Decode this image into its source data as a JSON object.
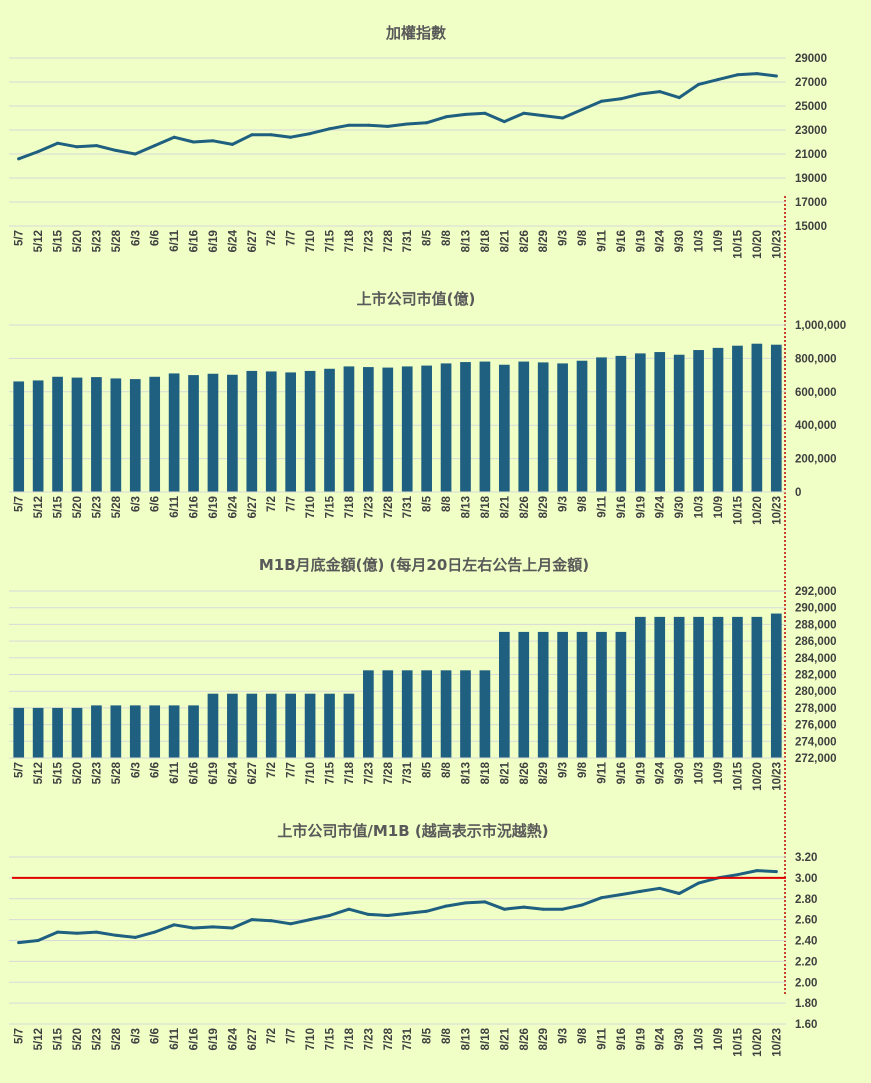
{
  "palette": {
    "background": "#efffc6",
    "series": "#1f5f7f",
    "grid": "#d9d9d9",
    "reference_line": "#e00000",
    "separator": "#c00000"
  },
  "x_labels": [
    "5/7",
    "5/12",
    "5/15",
    "5/20",
    "5/23",
    "5/28",
    "6/3",
    "6/6",
    "6/11",
    "6/16",
    "6/19",
    "6/24",
    "6/27",
    "7/2",
    "7/7",
    "7/10",
    "7/15",
    "7/18",
    "7/23",
    "7/28",
    "7/31",
    "8/5",
    "8/8",
    "8/13",
    "8/18",
    "8/21",
    "8/26",
    "8/29",
    "9/3",
    "9/8",
    "9/11",
    "9/16",
    "9/19",
    "9/24",
    "9/30",
    "10/3",
    "10/9",
    "10/15",
    "10/20",
    "10/23"
  ],
  "chart_data": [
    {
      "type": "line",
      "title": "加權指數",
      "ylim": [
        15000,
        29000
      ],
      "yticks": [
        "15000",
        "17000",
        "19000",
        "21000",
        "23000",
        "25000",
        "27000",
        "29000"
      ],
      "categories": [
        "5/7",
        "5/12",
        "5/15",
        "5/20",
        "5/23",
        "5/28",
        "6/3",
        "6/6",
        "6/11",
        "6/16",
        "6/19",
        "6/24",
        "6/27",
        "7/2",
        "7/7",
        "7/10",
        "7/15",
        "7/18",
        "7/23",
        "7/28",
        "7/31",
        "8/5",
        "8/8",
        "8/13",
        "8/18",
        "8/21",
        "8/26",
        "8/29",
        "9/3",
        "9/8",
        "9/11",
        "9/16",
        "9/19",
        "9/24",
        "9/30",
        "10/3",
        "10/9",
        "10/15",
        "10/20",
        "10/23"
      ],
      "values": [
        20600,
        21200,
        21900,
        21600,
        21700,
        21300,
        21000,
        21700,
        22400,
        22000,
        22100,
        21800,
        22600,
        22600,
        22400,
        22700,
        23100,
        23400,
        23400,
        23300,
        23500,
        23600,
        24100,
        24300,
        24400,
        23700,
        24400,
        24200,
        24000,
        24700,
        25400,
        25600,
        26000,
        26200,
        25700,
        26800,
        27200,
        27600,
        27700,
        27500
      ]
    },
    {
      "type": "bar",
      "title": "上市公司市值(億)",
      "ylim": [
        0,
        1000000
      ],
      "yticks": [
        "0",
        "200,000",
        "400,000",
        "600,000",
        "800,000",
        "1,000,000"
      ],
      "categories": [
        "5/7",
        "5/12",
        "5/15",
        "5/20",
        "5/23",
        "5/28",
        "6/3",
        "6/6",
        "6/11",
        "6/16",
        "6/19",
        "6/24",
        "6/27",
        "7/2",
        "7/7",
        "7/10",
        "7/15",
        "7/18",
        "7/23",
        "7/28",
        "7/31",
        "8/5",
        "8/8",
        "8/13",
        "8/18",
        "8/21",
        "8/26",
        "8/29",
        "9/3",
        "9/8",
        "9/11",
        "9/16",
        "9/19",
        "9/24",
        "9/30",
        "10/3",
        "10/9",
        "10/15",
        "10/20",
        "10/23"
      ],
      "values": [
        662000,
        668000,
        690000,
        685000,
        688000,
        680000,
        676000,
        690000,
        710000,
        700000,
        708000,
        702000,
        725000,
        722000,
        716000,
        725000,
        738000,
        752000,
        748000,
        745000,
        752000,
        757000,
        770000,
        778000,
        781000,
        762000,
        781000,
        776000,
        770000,
        786000,
        806000,
        815000,
        830000,
        838000,
        822000,
        850000,
        863000,
        876000,
        888000,
        882000
      ]
    },
    {
      "type": "bar",
      "title": "M1B月底金額(億) (每月20日左右公告上月金額)",
      "ylim": [
        272000,
        292000
      ],
      "yticks": [
        "272,000",
        "274,000",
        "276,000",
        "278,000",
        "280,000",
        "282,000",
        "284,000",
        "286,000",
        "288,000",
        "290,000",
        "292,000"
      ],
      "categories": [
        "5/7",
        "5/12",
        "5/15",
        "5/20",
        "5/23",
        "5/28",
        "6/3",
        "6/6",
        "6/11",
        "6/16",
        "6/19",
        "6/24",
        "6/27",
        "7/2",
        "7/7",
        "7/10",
        "7/15",
        "7/18",
        "7/23",
        "7/28",
        "7/31",
        "8/5",
        "8/8",
        "8/13",
        "8/18",
        "8/21",
        "8/26",
        "8/29",
        "9/3",
        "9/8",
        "9/11",
        "9/16",
        "9/19",
        "9/24",
        "9/30",
        "10/3",
        "10/9",
        "10/15",
        "10/20",
        "10/23"
      ],
      "values": [
        278000,
        278000,
        278000,
        278000,
        278300,
        278300,
        278300,
        278300,
        278300,
        278300,
        279700,
        279700,
        279700,
        279700,
        279700,
        279700,
        279700,
        279700,
        282500,
        282500,
        282500,
        282500,
        282500,
        282500,
        282500,
        287100,
        287100,
        287100,
        287100,
        287100,
        287100,
        287100,
        288900,
        288900,
        288900,
        288900,
        288900,
        288900,
        288900,
        289300
      ]
    },
    {
      "type": "line",
      "title": "上市公司市值/M1B (越高表示市況越熱)",
      "ylim": [
        1.6,
        3.2
      ],
      "yticks": [
        "1.60",
        "1.80",
        "2.00",
        "2.20",
        "2.40",
        "2.60",
        "2.80",
        "3.00",
        "3.20"
      ],
      "reference_value": 3.0,
      "categories": [
        "5/7",
        "5/12",
        "5/15",
        "5/20",
        "5/23",
        "5/28",
        "6/3",
        "6/6",
        "6/11",
        "6/16",
        "6/19",
        "6/24",
        "6/27",
        "7/2",
        "7/7",
        "7/10",
        "7/15",
        "7/18",
        "7/23",
        "7/28",
        "7/31",
        "8/5",
        "8/8",
        "8/13",
        "8/18",
        "8/21",
        "8/26",
        "8/29",
        "9/3",
        "9/8",
        "9/11",
        "9/16",
        "9/19",
        "9/24",
        "9/30",
        "10/3",
        "10/9",
        "10/15",
        "10/20",
        "10/23"
      ],
      "values": [
        2.38,
        2.4,
        2.48,
        2.47,
        2.48,
        2.45,
        2.43,
        2.48,
        2.55,
        2.52,
        2.53,
        2.52,
        2.6,
        2.59,
        2.56,
        2.6,
        2.64,
        2.7,
        2.65,
        2.64,
        2.66,
        2.68,
        2.73,
        2.76,
        2.77,
        2.7,
        2.72,
        2.7,
        2.7,
        2.74,
        2.81,
        2.84,
        2.87,
        2.9,
        2.85,
        2.95,
        3.0,
        3.03,
        3.07,
        3.06
      ]
    }
  ]
}
